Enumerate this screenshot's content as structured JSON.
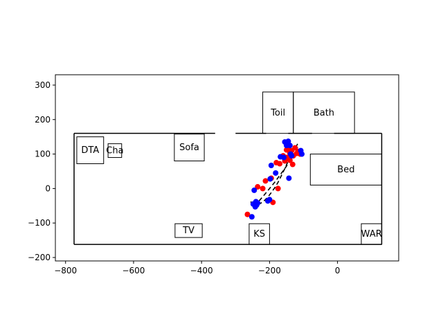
{
  "chart_data": {
    "type": "scatter",
    "title": "",
    "xlabel": "",
    "ylabel": "",
    "xlim": [
      -830,
      180
    ],
    "ylim": [
      -210,
      330
    ],
    "xticks": [
      -800,
      -600,
      -400,
      -200,
      0
    ],
    "yticks": [
      -200,
      -100,
      0,
      100,
      200,
      300
    ],
    "xtick_labels": [
      "−800",
      "−600",
      "−400",
      "−200",
      "0"
    ],
    "ytick_labels": [
      "−200",
      "−100",
      "0",
      "100",
      "200",
      "300"
    ],
    "grid": false,
    "legend": "none",
    "colors": {
      "outline": "#000000",
      "red_points": "#ff0000",
      "blue_points": "#0000ff"
    },
    "boundary": {
      "x": [
        -775,
        130,
        130,
        -155,
        -155,
        -185,
        -185,
        -300,
        -300,
        -355,
        -355,
        -775,
        -775
      ],
      "y": [
        160,
        160,
        -162,
        -162,
        -162,
        -162,
        -162,
        -162,
        -162,
        -162,
        -162,
        -162,
        160
      ],
      "segments": [
        [
          [
            -775,
            160
          ],
          [
            -360,
            160
          ]
        ],
        [
          [
            -300,
            160
          ],
          [
            -210,
            160
          ]
        ],
        [
          [
            -145,
            160
          ],
          [
            -75,
            160
          ]
        ],
        [
          [
            -10,
            160
          ],
          [
            130,
            160
          ]
        ],
        [
          [
            130,
            160
          ],
          [
            130,
            -162
          ]
        ],
        [
          [
            130,
            -162
          ],
          [
            -775,
            -162
          ]
        ],
        [
          [
            -775,
            -162
          ],
          [
            -775,
            160
          ]
        ]
      ]
    },
    "rooms": [
      {
        "label": "DTA",
        "x0": -767,
        "x1": -688,
        "y0": 72,
        "y1": 150
      },
      {
        "label": "Cha",
        "x0": -675,
        "x1": -635,
        "y0": 90,
        "y1": 130
      },
      {
        "label": "Sofa",
        "x0": -480,
        "x1": -392,
        "y0": 80,
        "y1": 158
      },
      {
        "label": "TV",
        "x0": -478,
        "x1": -398,
        "y0": -142,
        "y1": -102
      },
      {
        "label": "KS",
        "x0": -260,
        "x1": -200,
        "y0": -162,
        "y1": -102
      },
      {
        "label": "Toil",
        "x0": -220,
        "x1": -130,
        "y0": 160,
        "y1": 280
      },
      {
        "label": "Bath",
        "x0": -130,
        "x1": 50,
        "y0": 160,
        "y1": 280
      },
      {
        "label": "Bed",
        "x0": -80,
        "x1": 130,
        "y0": 10,
        "y1": 100
      },
      {
        "label": "WAR",
        "x0": 70,
        "x1": 130,
        "y0": -162,
        "y1": -102
      }
    ],
    "ellipse": {
      "x": [
        -245,
        -230,
        -215,
        -200,
        -185,
        -170,
        -155,
        -140,
        -128,
        -120,
        -115,
        -118,
        -125,
        -135,
        -145,
        -155,
        -165,
        -175,
        -185,
        -195,
        -205,
        -215,
        -225,
        -235,
        -245,
        -252,
        -255,
        -252,
        -245
      ],
      "y": [
        -50,
        -35,
        -18,
        0,
        18,
        38,
        58,
        80,
        100,
        115,
        125,
        128,
        118,
        100,
        80,
        58,
        38,
        18,
        2,
        -12,
        -25,
        -35,
        -42,
        -48,
        -52,
        -48,
        -38,
        -42,
        -50
      ]
    },
    "series": [
      {
        "color": "red",
        "x": [
          -265,
          -235,
          -220,
          -212,
          -195,
          -190,
          -180,
          -175,
          -170,
          -160,
          -155,
          -150,
          -145,
          -140,
          -135,
          -130,
          -125,
          -120,
          -115,
          -110,
          -140,
          -150,
          -132
        ],
        "y": [
          -75,
          5,
          0,
          22,
          30,
          -40,
          75,
          0,
          72,
          95,
          80,
          112,
          120,
          102,
          110,
          95,
          118,
          102,
          108,
          100,
          82,
          90,
          70
        ]
      },
      {
        "color": "blue",
        "x": [
          -252,
          -248,
          -245,
          -240,
          -238,
          -242,
          -235,
          -205,
          -200,
          -198,
          -195,
          -182,
          -168,
          -158,
          -155,
          -150,
          -148,
          -145,
          -140,
          -138,
          -135,
          -108,
          -105,
          -143
        ],
        "y": [
          -82,
          -45,
          -5,
          -38,
          -48,
          -53,
          -42,
          -36,
          -32,
          28,
          67,
          45,
          92,
          90,
          135,
          125,
          130,
          137,
          125,
          100,
          95,
          110,
          100,
          30
        ]
      }
    ]
  }
}
